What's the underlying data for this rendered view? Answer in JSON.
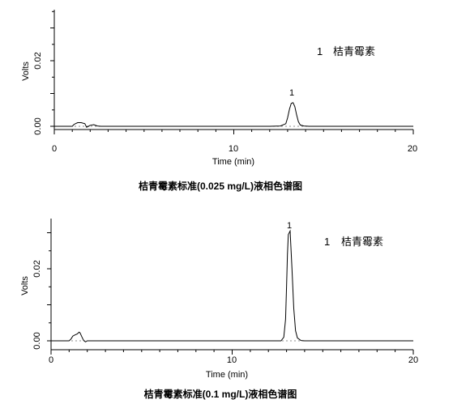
{
  "chart_data": [
    {
      "type": "line",
      "caption": "桔青霉素标准(0.025 mg/L)液相色谱图",
      "xlabel": "Time (min)",
      "ylabel": "Volts",
      "xlim": [
        0,
        20
      ],
      "ylim": [
        -0.002,
        0.035
      ],
      "x_ticks": [
        "0",
        "10",
        "20"
      ],
      "y_ticks": [
        "0.00",
        "0.02"
      ],
      "x_tick_values": [
        0,
        10,
        20
      ],
      "y_tick_values": [
        0.0,
        0.02
      ],
      "legend": {
        "number": "1",
        "label": "桔青霉素"
      },
      "peak_label": "1",
      "grid": false,
      "series": [
        {
          "x": [
            0,
            1.0,
            1.1,
            1.3,
            1.5,
            1.7,
            1.8,
            1.9,
            2.0,
            2.2,
            2.4,
            2.6,
            3.0,
            5.0,
            8.0,
            12.0,
            12.6,
            12.9,
            13.0,
            13.1,
            13.2,
            13.3,
            13.4,
            13.5,
            13.6,
            13.7,
            13.9,
            14.2,
            17.0,
            20.0
          ],
          "y": [
            0.0,
            0.0,
            0.0006,
            0.0011,
            0.0011,
            0.0008,
            -0.0003,
            0.0,
            0.0003,
            0.0005,
            0.0001,
            0.0,
            0.0,
            0.0,
            0.0,
            0.0,
            0.0001,
            0.0008,
            0.0026,
            0.0052,
            0.007,
            0.0072,
            0.006,
            0.0035,
            0.0014,
            0.0004,
            0.0001,
            0.0,
            0.0,
            0.0
          ]
        }
      ]
    },
    {
      "type": "line",
      "caption": "桔青霉素标准(0.1 mg/L)液相色谱图",
      "xlabel": "Time (min)",
      "ylabel": "Volts",
      "xlim": [
        0,
        20
      ],
      "ylim": [
        -0.002,
        0.035
      ],
      "x_ticks": [
        "0",
        "10",
        "20"
      ],
      "y_ticks": [
        "0.00",
        "0.02"
      ],
      "x_tick_values": [
        0,
        10,
        20
      ],
      "y_tick_values": [
        0.0,
        0.02
      ],
      "legend": {
        "number": "1",
        "label": "桔青霉素"
      },
      "peak_label": "1",
      "grid": false,
      "series": [
        {
          "x": [
            0,
            1.0,
            1.1,
            1.2,
            1.3,
            1.45,
            1.55,
            1.6,
            1.7,
            1.8,
            1.9,
            2.0,
            2.5,
            5.0,
            8.0,
            12.0,
            12.7,
            12.85,
            12.95,
            13.0,
            13.05,
            13.1,
            13.2,
            13.3,
            13.4,
            13.5,
            13.6,
            13.8,
            14.0,
            17.0,
            20.0
          ],
          "y": [
            0.0,
            0.0,
            0.0005,
            0.0013,
            0.0016,
            0.0019,
            0.0024,
            0.0022,
            0.0011,
            0.0001,
            -0.0003,
            0.0,
            0.0,
            0.0,
            0.0,
            0.0,
            0.0,
            0.001,
            0.006,
            0.015,
            0.024,
            0.0295,
            0.0305,
            0.02,
            0.009,
            0.0028,
            0.0008,
            0.0001,
            0.0,
            0.0,
            0.0
          ]
        }
      ]
    }
  ]
}
